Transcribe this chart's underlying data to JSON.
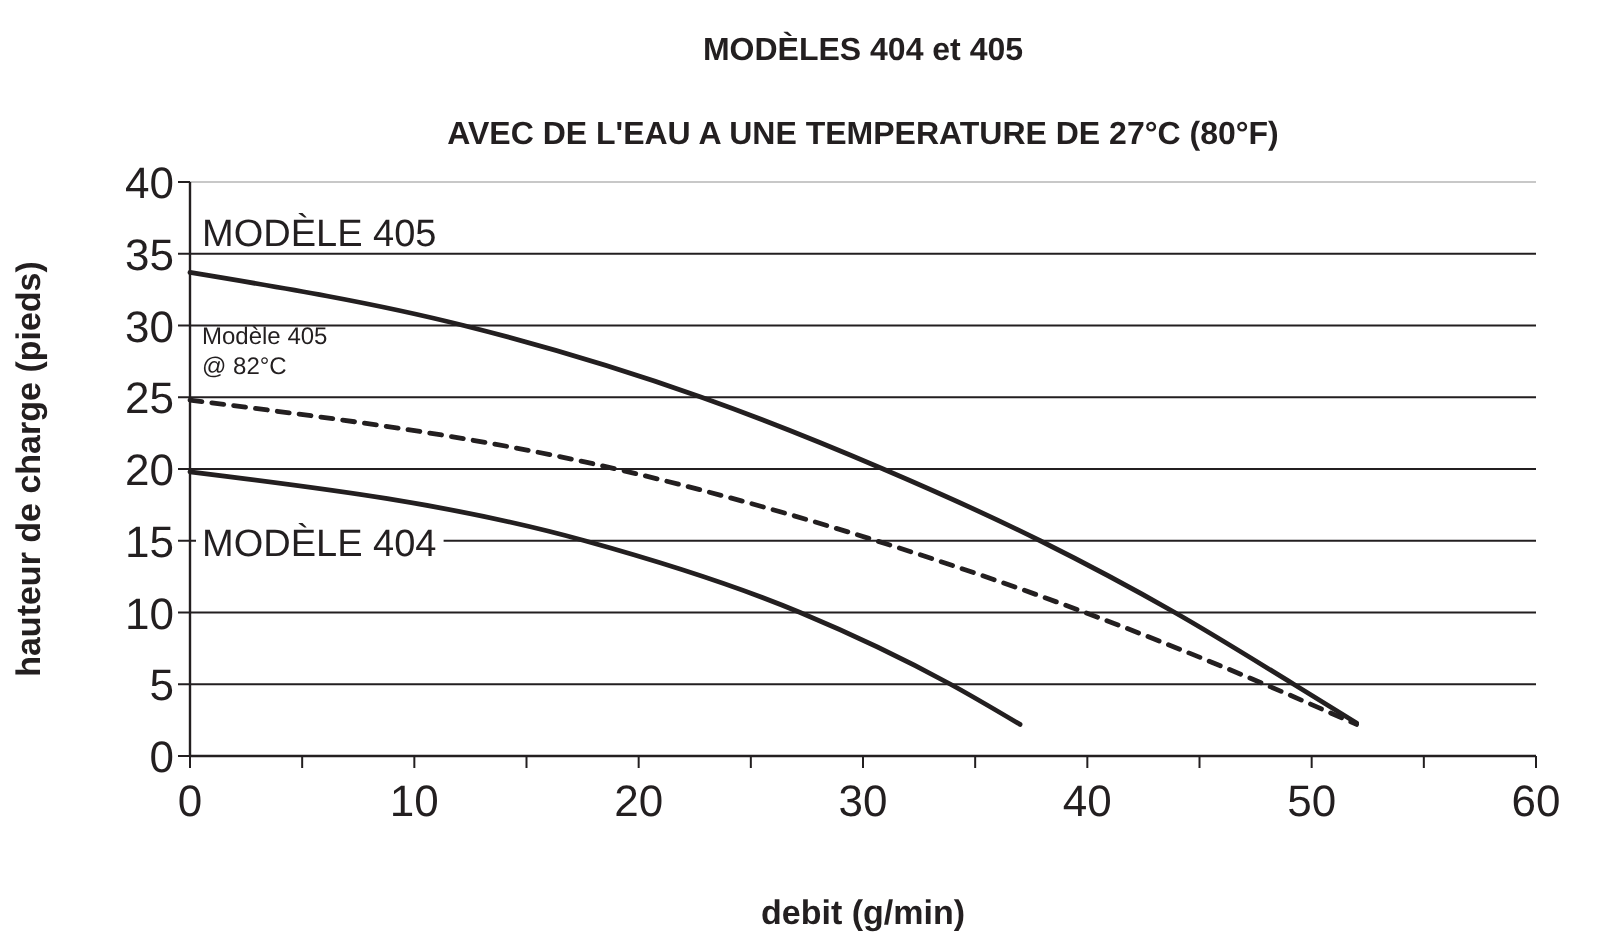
{
  "chart_data": {
    "type": "line",
    "title": "MODÈLES 404 et 405",
    "subtitle": "AVEC DE L'EAU A UNE TEMPERATURE DE 27°C (80°F)",
    "xlabel": "debit (g/min)",
    "ylabel": "hauteur de charge (pieds)",
    "xlim": [
      0,
      60
    ],
    "ylim": [
      0,
      40
    ],
    "xticks": [
      0,
      {
        "value": 5,
        "label": null
      },
      10,
      {
        "value": 15,
        "label": null
      },
      20,
      {
        "value": 25,
        "label": null
      },
      30,
      {
        "value": 35,
        "label": null
      },
      40,
      {
        "value": 45,
        "label": null
      },
      50,
      {
        "value": 55,
        "label": null
      },
      60
    ],
    "yticks": [
      0,
      5,
      10,
      15,
      20,
      25,
      30,
      35,
      40
    ],
    "grid": "y",
    "series": [
      {
        "name": "MODÈLE 405",
        "color": "#231f20",
        "line_style": "solid",
        "x": [
          0,
          12.2,
          22.8,
          30.9,
          37.9,
          43.9,
          49.2,
          52
        ],
        "values": [
          33.7,
          30,
          25,
          20,
          15,
          10,
          5,
          2.3
        ]
      },
      {
        "name": "Modèle 405\n@ 82°C",
        "color": "#231f20",
        "line_style": "dashed",
        "x": [
          0,
          19,
          30.6,
          39.9,
          47.9,
          52
        ],
        "values": [
          24.8,
          20,
          15,
          10,
          5,
          2.2
        ]
      },
      {
        "name": "MODÈLE 404",
        "color": "#231f20",
        "line_style": "solid",
        "x": [
          0,
          17.6,
          27.2,
          33.9,
          37
        ],
        "values": [
          19.8,
          15,
          10,
          5,
          2.2
        ]
      }
    ]
  }
}
